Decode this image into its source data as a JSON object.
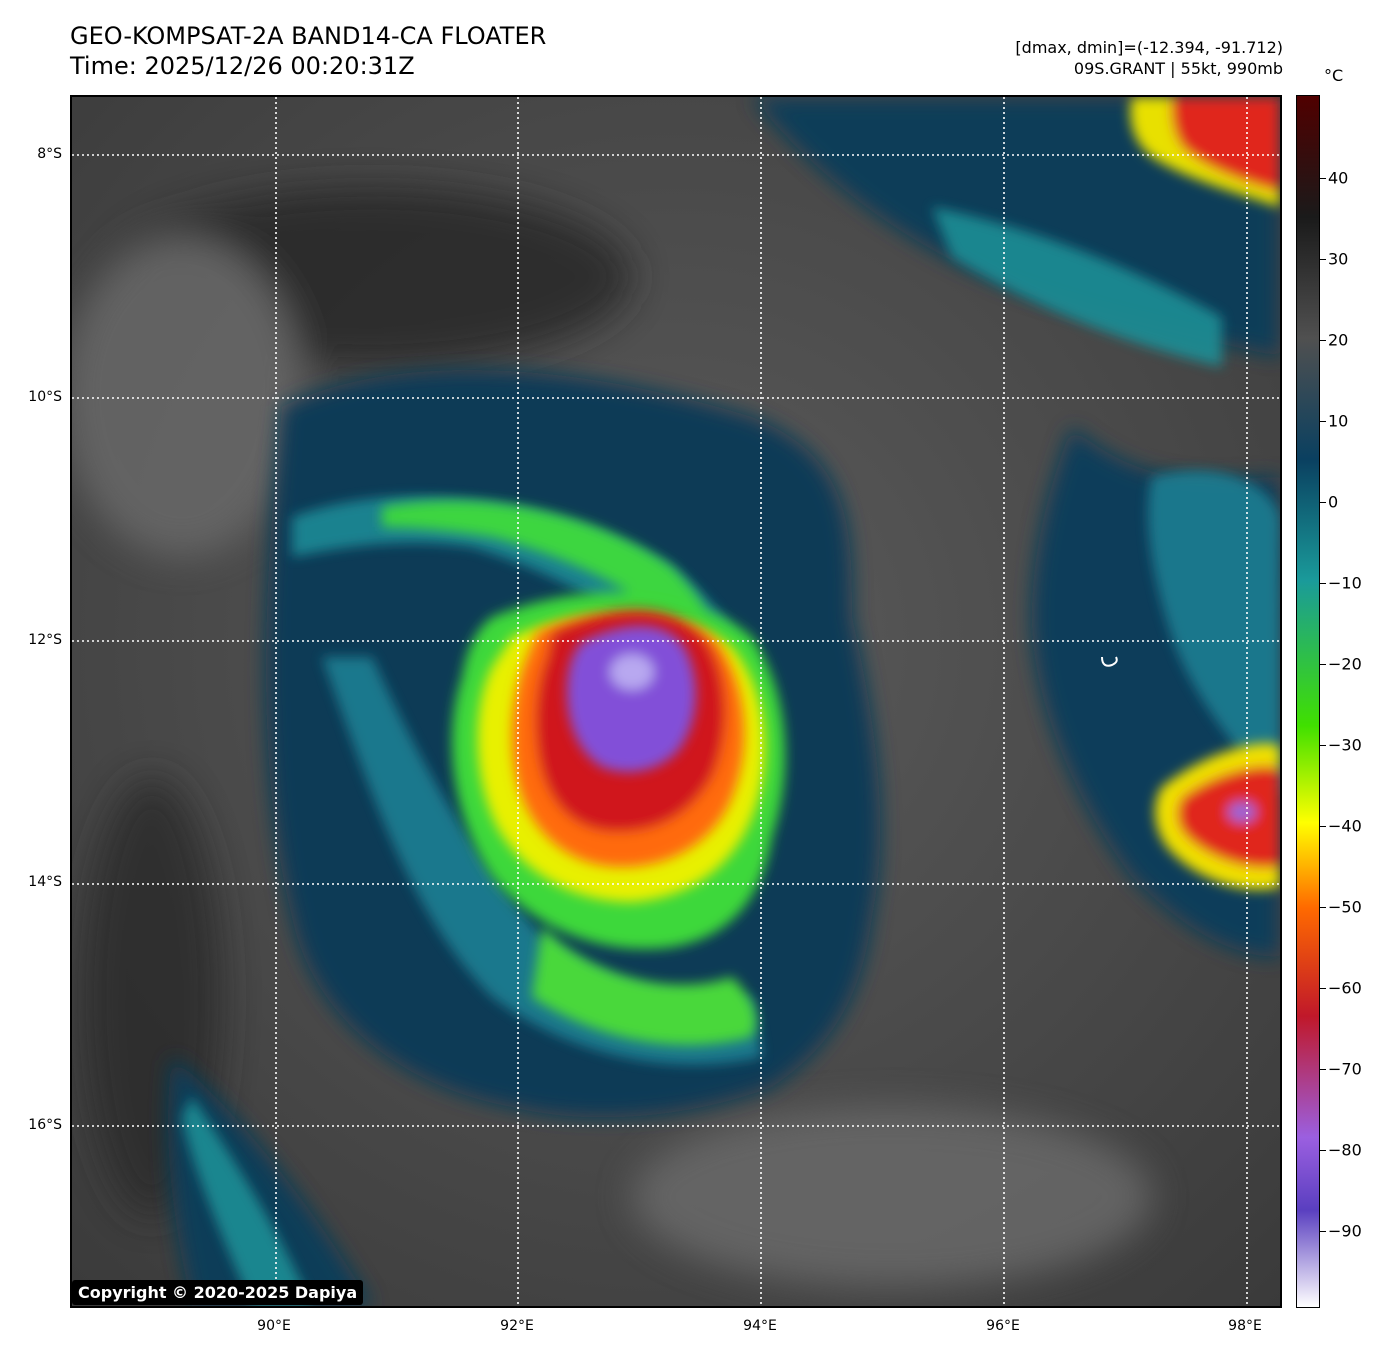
{
  "header": {
    "title_line1": "GEO-KOMPSAT-2A BAND14-CA FLOATER",
    "title_line2": "Time: 2025/12/26 00:20:31Z",
    "info_line1": "[dmax, dmin]=(-12.394, -91.712)",
    "info_line2": "09S.GRANT | 55kt, 990mb"
  },
  "map": {
    "lat_labels": [
      "8°S",
      "10°S",
      "12°S",
      "14°S",
      "16°S"
    ],
    "lon_labels": [
      "90°E",
      "92°E",
      "94°E",
      "96°E",
      "98°E"
    ],
    "gridlines": "dotted-white"
  },
  "colorbar": {
    "unit": "°C",
    "tick_labels": [
      "40",
      "30",
      "20",
      "10",
      "0",
      "−10",
      "−20",
      "−30",
      "−40",
      "−50",
      "−60",
      "−70",
      "−80",
      "−90"
    ],
    "colors": [
      "#ffffff",
      "#5a3fc0",
      "#9b5fe0",
      "#c0182a",
      "#ff6a00",
      "#ffff00",
      "#40e000",
      "#1a9a9a",
      "#0a4060",
      "#505050",
      "#1a1a1a",
      "#500000"
    ]
  },
  "copyright": "Copyright © 2020-2025 Dapiya"
}
